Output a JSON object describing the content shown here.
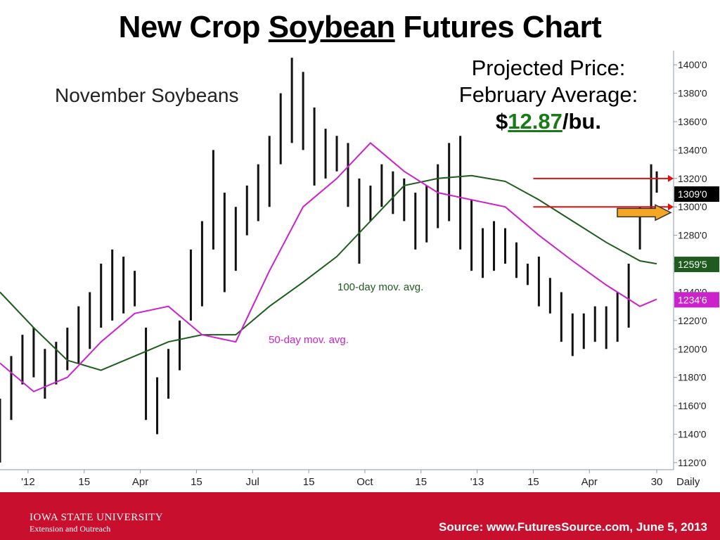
{
  "slide": {
    "title_part1": "New Crop ",
    "title_part2": "Soybean",
    "title_part3": " Futures Chart"
  },
  "annotation": {
    "line1": "Projected Price:",
    "line2": "February Average:",
    "dollar": "$",
    "price": "12.87",
    "unit": "/bu."
  },
  "footer": {
    "university": "IOWA STATE UNIVERSITY",
    "extension": "Extension and Outreach",
    "source": "Source:  www.FuturesSource.com, June 5, 2013"
  },
  "chart_data": {
    "type": "bar",
    "title": "November Soybeans",
    "interval_label": "Daily",
    "y_ticks": [
      "1120'0",
      "1140'0",
      "1160'0",
      "1180'0",
      "1200'0",
      "1220'0",
      "1240'0",
      "1260'0",
      "1280'0",
      "1300'0",
      "1320'0",
      "1340'0",
      "1360'0",
      "1380'0",
      "1400'0"
    ],
    "y_tick_values": [
      1120,
      1140,
      1160,
      1180,
      1200,
      1220,
      1240,
      1260,
      1280,
      1300,
      1320,
      1340,
      1360,
      1380,
      1400
    ],
    "ylim": [
      1115,
      1410
    ],
    "x_ticks": [
      "'12",
      "15",
      "Apr",
      "15",
      "Jul",
      "15",
      "Oct",
      "15",
      "'13",
      "15",
      "Apr",
      "30"
    ],
    "x_tick_index": [
      5,
      15,
      25,
      35,
      45,
      55,
      65,
      75,
      85,
      95,
      105,
      117
    ],
    "xlim": [
      0,
      120
    ],
    "price_range": {
      "x": [
        0,
        2,
        4,
        6,
        8,
        10,
        12,
        14,
        16,
        18,
        20,
        22,
        24,
        26,
        28,
        30,
        32,
        34,
        36,
        38,
        40,
        42,
        44,
        46,
        48,
        50,
        52,
        54,
        56,
        58,
        60,
        62,
        64,
        66,
        68,
        70,
        72,
        74,
        76,
        78,
        80,
        82,
        84,
        86,
        88,
        90,
        92,
        94,
        96,
        98,
        100,
        102,
        104,
        106,
        108,
        110,
        112,
        114,
        116,
        117
      ],
      "low": [
        1120,
        1150,
        1175,
        1180,
        1165,
        1175,
        1185,
        1190,
        1200,
        1215,
        1220,
        1225,
        1230,
        1150,
        1140,
        1165,
        1185,
        1220,
        1230,
        1270,
        1240,
        1255,
        1280,
        1290,
        1300,
        1330,
        1345,
        1340,
        1315,
        1320,
        1325,
        1300,
        1260,
        1290,
        1300,
        1295,
        1290,
        1270,
        1275,
        1285,
        1290,
        1270,
        1255,
        1250,
        1255,
        1260,
        1250,
        1245,
        1230,
        1225,
        1205,
        1195,
        1200,
        1205,
        1200,
        1205,
        1215,
        1270,
        1295,
        1310
      ],
      "high": [
        1165,
        1195,
        1210,
        1215,
        1200,
        1205,
        1215,
        1230,
        1240,
        1260,
        1270,
        1265,
        1255,
        1215,
        1180,
        1200,
        1220,
        1270,
        1290,
        1340,
        1310,
        1300,
        1315,
        1330,
        1350,
        1380,
        1405,
        1395,
        1370,
        1355,
        1350,
        1345,
        1320,
        1315,
        1330,
        1325,
        1320,
        1310,
        1315,
        1330,
        1345,
        1350,
        1305,
        1285,
        1290,
        1285,
        1275,
        1260,
        1265,
        1250,
        1240,
        1225,
        1225,
        1230,
        1230,
        1240,
        1260,
        1300,
        1330,
        1325
      ]
    },
    "series": [
      {
        "name": "100-day mov. avg.",
        "color": "#1e5c1e",
        "x": [
          0,
          6,
          12,
          18,
          24,
          30,
          36,
          42,
          48,
          54,
          60,
          66,
          72,
          78,
          84,
          90,
          96,
          102,
          108,
          114,
          117
        ],
        "values": [
          1240,
          1215,
          1192,
          1185,
          1195,
          1205,
          1210,
          1210,
          1230,
          1247,
          1265,
          1290,
          1315,
          1320,
          1322,
          1318,
          1305,
          1290,
          1275,
          1262,
          1260
        ]
      },
      {
        "name": "50-day mov. avg.",
        "color": "#cc22cc",
        "x": [
          0,
          6,
          12,
          18,
          24,
          30,
          36,
          42,
          48,
          54,
          60,
          66,
          72,
          78,
          84,
          90,
          96,
          102,
          108,
          114,
          117
        ],
        "values": [
          1190,
          1170,
          1180,
          1205,
          1225,
          1230,
          1210,
          1205,
          1255,
          1300,
          1320,
          1345,
          1325,
          1310,
          1305,
          1300,
          1280,
          1262,
          1245,
          1230,
          1235
        ]
      }
    ],
    "horizontal_lines": [
      {
        "value": 1320,
        "color": "#e01010"
      },
      {
        "value": 1300,
        "color": "#e01010"
      }
    ],
    "price_labels": [
      {
        "value": 1309,
        "label": "1309'0",
        "bg": "#000000"
      },
      {
        "value": 1259.5,
        "label": "1259'5",
        "bg": "#1e5c1e"
      },
      {
        "value": 1234.6,
        "label": "1234'6",
        "bg": "#cc22cc"
      }
    ],
    "arrow_color": "#f5a623"
  }
}
